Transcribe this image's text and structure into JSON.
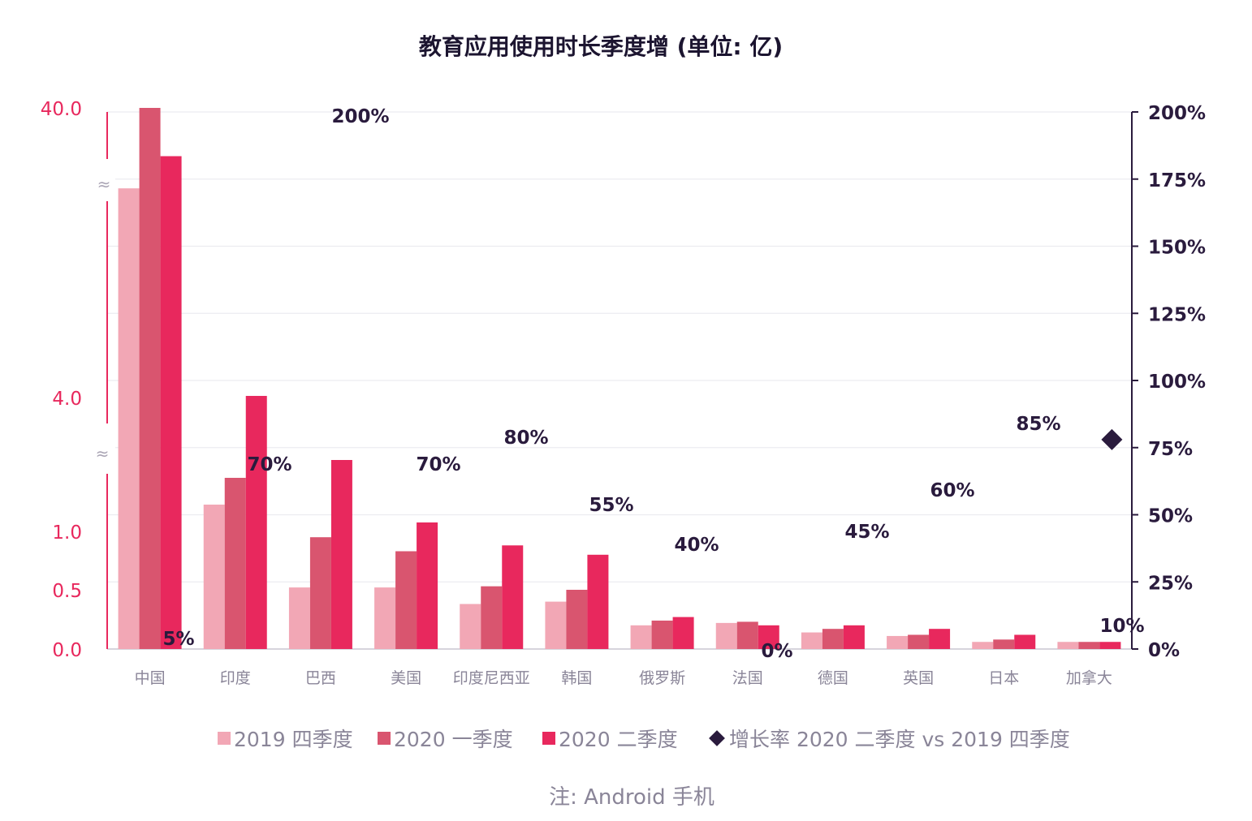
{
  "chart_data": {
    "type": "bar",
    "title": "教育应用使用时长季度增 (单位: 亿)",
    "note": "注: Android 手机",
    "categories": [
      "中国",
      "印度",
      "巴西",
      "美国",
      "印度尼西亚",
      "韩国",
      "俄罗斯",
      "法国",
      "德国",
      "英国",
      "日本",
      "加拿大"
    ],
    "series": [
      {
        "name": "2019 四季度",
        "color": "#f2a7b5",
        "values": [
          30.0,
          1.6,
          0.52,
          0.52,
          0.38,
          0.4,
          0.2,
          0.22,
          0.14,
          0.11,
          0.06,
          0.06
        ]
      },
      {
        "name": "2020 一季度",
        "color": "#d9556f",
        "values": [
          40.0,
          2.2,
          0.95,
          0.83,
          0.53,
          0.5,
          0.24,
          0.23,
          0.17,
          0.12,
          0.08,
          0.06
        ]
      },
      {
        "name": "2020 二季度",
        "color": "#e8285d",
        "values": [
          34.0,
          4.2,
          2.6,
          1.2,
          0.88,
          0.8,
          0.27,
          0.2,
          0.2,
          0.17,
          0.12,
          0.06
        ]
      }
    ],
    "growth": {
      "name": "增长率 2020 二季度 vs 2019 四季度",
      "color": "#2a1b3d",
      "labels": [
        "5%",
        "70%",
        "200%",
        "70%",
        "80%",
        "55%",
        "40%",
        "0%",
        "45%",
        "60%",
        "85%",
        "10%"
      ],
      "values": [
        5,
        70,
        200,
        70,
        80,
        55,
        40,
        0,
        45,
        60,
        85,
        10
      ],
      "marker_category": "加拿大",
      "marker_value": 78
    },
    "y_left": {
      "ticks": [
        "0.0",
        "0.5",
        "1.0",
        "4.0",
        "40.0"
      ],
      "tick_values": [
        0,
        0.5,
        1.0,
        4.0,
        40.0
      ],
      "color": "#e8285d",
      "broken": true
    },
    "y_right": {
      "ticks": [
        "0%",
        "25%",
        "50%",
        "75%",
        "100%",
        "125%",
        "150%",
        "175%",
        "200%"
      ],
      "tick_values": [
        0,
        25,
        50,
        75,
        100,
        125,
        150,
        175,
        200
      ],
      "color": "#2a1b3d"
    },
    "grid": true,
    "legend_position": "bottom"
  }
}
